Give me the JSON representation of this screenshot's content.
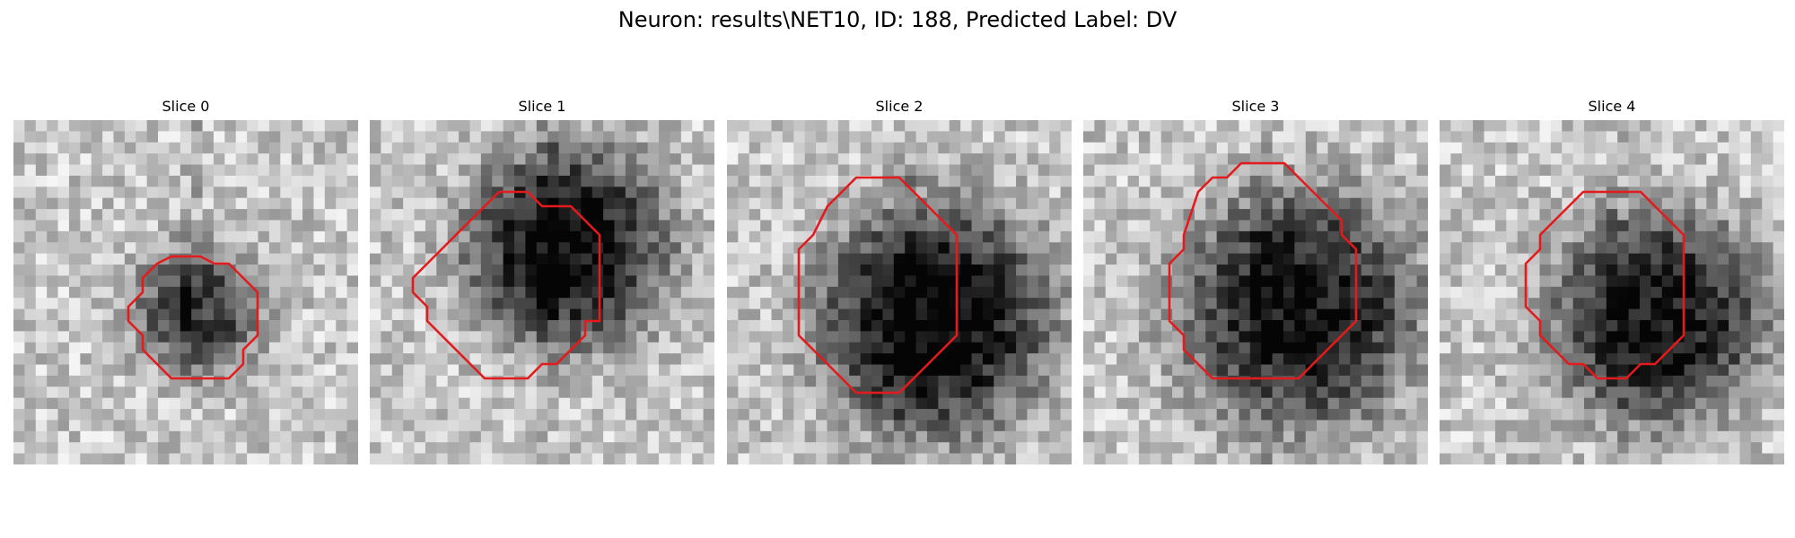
{
  "figure": {
    "title": "Neuron: results\\NET10, ID: 188, Predicted Label: DV",
    "outline_color": "#e41a1c"
  },
  "slices": [
    {
      "label": "Slice 0"
    },
    {
      "label": "Slice 1"
    },
    {
      "label": "Slice 2"
    },
    {
      "label": "Slice 3"
    },
    {
      "label": "Slice 4"
    }
  ]
}
